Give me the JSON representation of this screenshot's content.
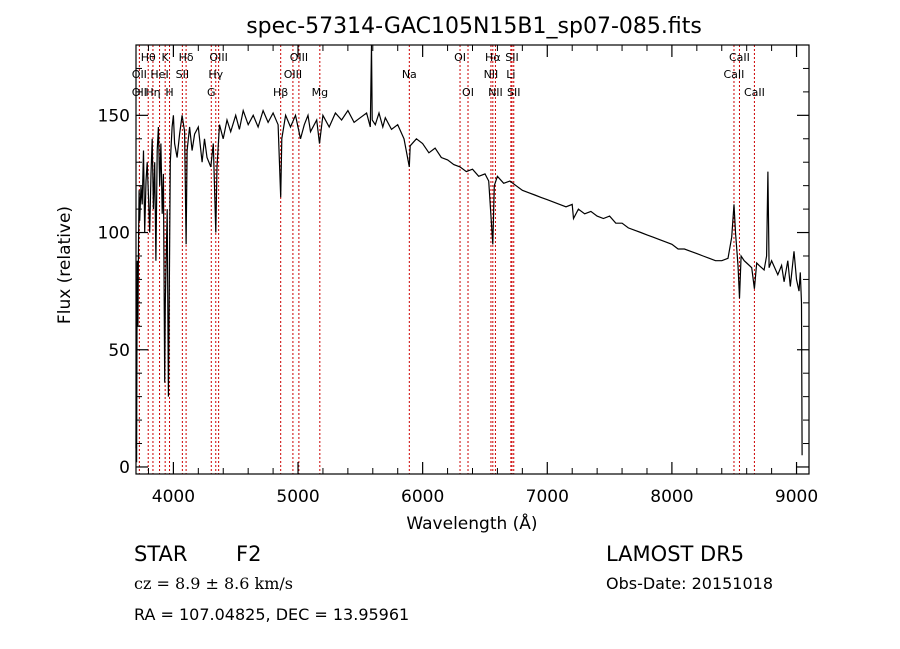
{
  "chart_data": {
    "type": "line",
    "title": "spec-57314-GAC105N15B1_sp07-085.fits",
    "xlabel": "Wavelength (Å)",
    "ylabel": "Flux (relative)",
    "xlim": [
      3700,
      9100
    ],
    "ylim": [
      -3,
      180
    ],
    "xticks": [
      4000,
      5000,
      6000,
      7000,
      8000,
      9000
    ],
    "yticks": [
      0,
      50,
      100,
      150
    ],
    "grid": false,
    "series": [
      {
        "values": [
          [
            3700,
            8
          ],
          [
            3702,
            35
          ],
          [
            3705,
            2
          ],
          [
            3710,
            88
          ],
          [
            3715,
            60
          ],
          [
            3720,
            95
          ],
          [
            3725,
            118
          ],
          [
            3730,
            105
          ],
          [
            3740,
            120
          ],
          [
            3750,
            112
          ],
          [
            3760,
            135
          ],
          [
            3770,
            100
          ],
          [
            3780,
            122
          ],
          [
            3790,
            130
          ],
          [
            3800,
            115
          ],
          [
            3810,
            100
          ],
          [
            3820,
            125
          ],
          [
            3830,
            140
          ],
          [
            3840,
            110
          ],
          [
            3850,
            130
          ],
          [
            3860,
            88
          ],
          [
            3870,
            135
          ],
          [
            3880,
            145
          ],
          [
            3890,
            120
          ],
          [
            3900,
            138
          ],
          [
            3910,
            108
          ],
          [
            3920,
            125
          ],
          [
            3930,
            36
          ],
          [
            3935,
            70
          ],
          [
            3950,
            110
          ],
          [
            3960,
            30
          ],
          [
            3965,
            60
          ],
          [
            3975,
            130
          ],
          [
            3990,
            145
          ],
          [
            4000,
            150
          ],
          [
            4010,
            138
          ],
          [
            4030,
            132
          ],
          [
            4050,
            142
          ],
          [
            4070,
            150
          ],
          [
            4090,
            143
          ],
          [
            4102,
            95
          ],
          [
            4110,
            135
          ],
          [
            4130,
            145
          ],
          [
            4150,
            135
          ],
          [
            4170,
            142
          ],
          [
            4200,
            145
          ],
          [
            4230,
            130
          ],
          [
            4250,
            140
          ],
          [
            4270,
            132
          ],
          [
            4300,
            128
          ],
          [
            4320,
            138
          ],
          [
            4340,
            100
          ],
          [
            4350,
            128
          ],
          [
            4370,
            146
          ],
          [
            4400,
            140
          ],
          [
            4430,
            148
          ],
          [
            4460,
            143
          ],
          [
            4500,
            150
          ],
          [
            4530,
            144
          ],
          [
            4560,
            152
          ],
          [
            4600,
            146
          ],
          [
            4640,
            150
          ],
          [
            4680,
            145
          ],
          [
            4720,
            152
          ],
          [
            4760,
            147
          ],
          [
            4800,
            151
          ],
          [
            4840,
            146
          ],
          [
            4861,
            115
          ],
          [
            4870,
            140
          ],
          [
            4900,
            150
          ],
          [
            4940,
            145
          ],
          [
            4980,
            150
          ],
          [
            5020,
            140
          ],
          [
            5050,
            146
          ],
          [
            5080,
            150
          ],
          [
            5100,
            143
          ],
          [
            5150,
            148
          ],
          [
            5172,
            138
          ],
          [
            5200,
            150
          ],
          [
            5250,
            145
          ],
          [
            5300,
            151
          ],
          [
            5350,
            148
          ],
          [
            5400,
            152
          ],
          [
            5450,
            147
          ],
          [
            5500,
            149
          ],
          [
            5550,
            151
          ],
          [
            5580,
            145
          ],
          [
            5590,
            180
          ],
          [
            5595,
            148
          ],
          [
            5620,
            146
          ],
          [
            5650,
            151
          ],
          [
            5680,
            145
          ],
          [
            5700,
            149
          ],
          [
            5750,
            144
          ],
          [
            5800,
            146
          ],
          [
            5850,
            140
          ],
          [
            5893,
            128
          ],
          [
            5900,
            137
          ],
          [
            5950,
            140
          ],
          [
            6000,
            138
          ],
          [
            6050,
            134
          ],
          [
            6100,
            136
          ],
          [
            6150,
            132
          ],
          [
            6200,
            131
          ],
          [
            6250,
            129
          ],
          [
            6300,
            128
          ],
          [
            6350,
            126
          ],
          [
            6400,
            127
          ],
          [
            6450,
            124
          ],
          [
            6500,
            125
          ],
          [
            6530,
            122
          ],
          [
            6563,
            95
          ],
          [
            6575,
            120
          ],
          [
            6600,
            124
          ],
          [
            6650,
            121
          ],
          [
            6700,
            122
          ],
          [
            6750,
            120
          ],
          [
            6800,
            118
          ],
          [
            6850,
            117
          ],
          [
            6900,
            116
          ],
          [
            6950,
            115
          ],
          [
            7000,
            114
          ],
          [
            7050,
            113
          ],
          [
            7100,
            112
          ],
          [
            7150,
            111
          ],
          [
            7200,
            112
          ],
          [
            7210,
            106
          ],
          [
            7250,
            110
          ],
          [
            7300,
            108
          ],
          [
            7350,
            109
          ],
          [
            7400,
            107
          ],
          [
            7450,
            106
          ],
          [
            7500,
            107
          ],
          [
            7550,
            104
          ],
          [
            7600,
            104
          ],
          [
            7650,
            102
          ],
          [
            7700,
            101
          ],
          [
            7750,
            100
          ],
          [
            7800,
            99
          ],
          [
            7850,
            98
          ],
          [
            7900,
            97
          ],
          [
            7950,
            96
          ],
          [
            8000,
            95
          ],
          [
            8050,
            93
          ],
          [
            8100,
            93
          ],
          [
            8150,
            92
          ],
          [
            8200,
            91
          ],
          [
            8250,
            90
          ],
          [
            8300,
            89
          ],
          [
            8350,
            88
          ],
          [
            8400,
            88
          ],
          [
            8450,
            89
          ],
          [
            8480,
            98
          ],
          [
            8498,
            112
          ],
          [
            8510,
            100
          ],
          [
            8530,
            86
          ],
          [
            8542,
            72
          ],
          [
            8555,
            90
          ],
          [
            8580,
            88
          ],
          [
            8600,
            87
          ],
          [
            8640,
            85
          ],
          [
            8662,
            76
          ],
          [
            8680,
            87
          ],
          [
            8700,
            86
          ],
          [
            8740,
            84
          ],
          [
            8760,
            90
          ],
          [
            8770,
            126
          ],
          [
            8780,
            85
          ],
          [
            8800,
            88
          ],
          [
            8850,
            82
          ],
          [
            8880,
            86
          ],
          [
            8900,
            79
          ],
          [
            8930,
            88
          ],
          [
            8950,
            77
          ],
          [
            8980,
            92
          ],
          [
            9000,
            80
          ],
          [
            9020,
            75
          ],
          [
            9030,
            83
          ],
          [
            9040,
            70
          ],
          [
            9045,
            5
          ]
        ]
      }
    ],
    "lines": [
      {
        "label": "Hθ",
        "x": 3798,
        "row": 1
      },
      {
        "label": "OII",
        "x": 3727,
        "row": 2
      },
      {
        "label": "OII",
        "x": 3727,
        "row": 3
      },
      {
        "label": "Hη",
        "x": 3836,
        "row": 3
      },
      {
        "label": "HeI",
        "x": 3889,
        "row": 2
      },
      {
        "label": "K",
        "x": 3934,
        "row": 1
      },
      {
        "label": "H",
        "x": 3969,
        "row": 3
      },
      {
        "label": "Hδ",
        "x": 4102,
        "row": 1
      },
      {
        "label": "SII",
        "x": 4072,
        "row": 2
      },
      {
        "label": "OIII",
        "x": 4363,
        "row": 1
      },
      {
        "label": "Hγ",
        "x": 4340,
        "row": 2
      },
      {
        "label": "G",
        "x": 4304,
        "row": 3
      },
      {
        "label": "OIII",
        "x": 5007,
        "row": 1
      },
      {
        "label": "OIII",
        "x": 4959,
        "row": 2
      },
      {
        "label": "Hβ",
        "x": 4861,
        "row": 3
      },
      {
        "label": "Mg",
        "x": 5175,
        "row": 3
      },
      {
        "label": "Na",
        "x": 5893,
        "row": 2
      },
      {
        "label": "OI",
        "x": 6300,
        "row": 1
      },
      {
        "label": "OI",
        "x": 6364,
        "row": 3
      },
      {
        "label": "Hα",
        "x": 6563,
        "row": 1
      },
      {
        "label": "NII",
        "x": 6548,
        "row": 2
      },
      {
        "label": "NII",
        "x": 6584,
        "row": 3
      },
      {
        "label": "SII",
        "x": 6717,
        "row": 1
      },
      {
        "label": "Li",
        "x": 6708,
        "row": 2
      },
      {
        "label": "SII",
        "x": 6731,
        "row": 3
      },
      {
        "label": "CaII",
        "x": 8542,
        "row": 1
      },
      {
        "label": "CaII",
        "x": 8498,
        "row": 2
      },
      {
        "label": "CaII",
        "x": 8662,
        "row": 3
      }
    ]
  },
  "footer": {
    "class_label": "STAR",
    "subclass": "F2",
    "survey": "LAMOST DR5",
    "redshift": "cz = 8.9 ± 8.6 km/s",
    "obs_date": "Obs-Date: 20151018",
    "coords": "RA = 107.04825, DEC =  13.95961"
  },
  "colors": {
    "spectrum": "#000000",
    "line_markers": "#cc0000"
  }
}
